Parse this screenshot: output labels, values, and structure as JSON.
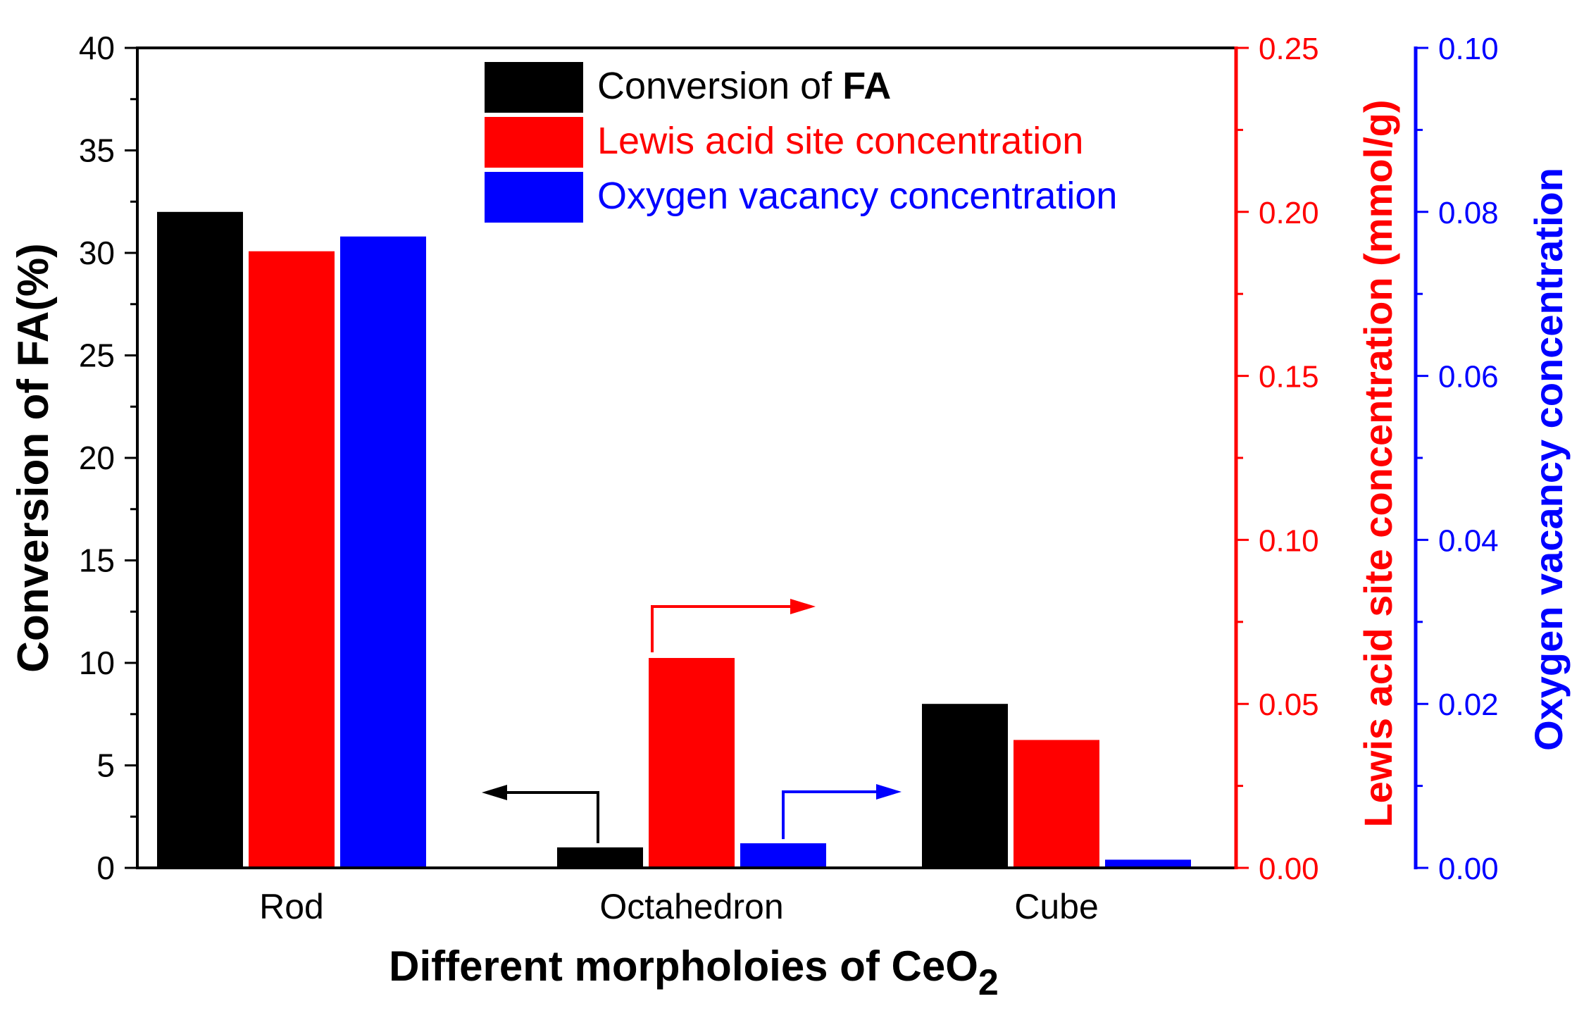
{
  "colors": {
    "black": "#000000",
    "red": "#ff0000",
    "blue": "#0000ff"
  },
  "chart_data": {
    "type": "bar",
    "categories": [
      "Rod",
      "Octahedron",
      "Cube"
    ],
    "xlabel": "Different morpholoies of CeO",
    "xlabel_subscript": "2",
    "axes": {
      "left": {
        "label": "Conversion of FA(%)",
        "range": [
          0,
          40
        ],
        "major_ticks": [
          0,
          5,
          10,
          15,
          20,
          25,
          30,
          35,
          40
        ],
        "tick_labels": [
          "0",
          "5",
          "10",
          "15",
          "20",
          "25",
          "30",
          "35",
          "40"
        ],
        "color": "#000000"
      },
      "right_red": {
        "label": "Lewis acid site concentration (mmol/g)",
        "range": [
          0,
          0.25
        ],
        "major_ticks": [
          0,
          0.05,
          0.1,
          0.15,
          0.2,
          0.25
        ],
        "tick_labels": [
          "0.00",
          "0.05",
          "0.10",
          "0.15",
          "0.20",
          "0.25"
        ],
        "color": "#ff0000"
      },
      "right_blue": {
        "label": "Oxygen vacancy concentration",
        "range": [
          0,
          0.1
        ],
        "major_ticks": [
          0,
          0.02,
          0.04,
          0.06,
          0.08,
          0.1
        ],
        "tick_labels": [
          "0.00",
          "0.02",
          "0.04",
          "0.06",
          "0.08",
          "0.10"
        ],
        "color": "#0000ff"
      }
    },
    "series": [
      {
        "name": "Conversion of FA",
        "legend_prefix": "Conversion of ",
        "legend_bold": "FA",
        "axis": "left",
        "color": "#000000",
        "values": [
          32.0,
          1.0,
          8.0
        ]
      },
      {
        "name": "Lewis acid site concentration",
        "axis": "right_red",
        "color": "#ff0000",
        "values": [
          0.188,
          0.064,
          0.039
        ]
      },
      {
        "name": "Oxygen vacancy concentration",
        "axis": "right_blue",
        "color": "#0000ff",
        "values": [
          0.077,
          0.003,
          0.001
        ]
      }
    ],
    "legend_position": "top-center",
    "annotations": [
      {
        "type": "axis-arrow",
        "series": "Conversion of FA",
        "category": "Octahedron",
        "direction": "left"
      },
      {
        "type": "axis-arrow",
        "series": "Lewis acid site concentration",
        "category": "Octahedron",
        "direction": "right"
      },
      {
        "type": "axis-arrow",
        "series": "Oxygen vacancy concentration",
        "category": "Octahedron",
        "direction": "right"
      }
    ]
  }
}
